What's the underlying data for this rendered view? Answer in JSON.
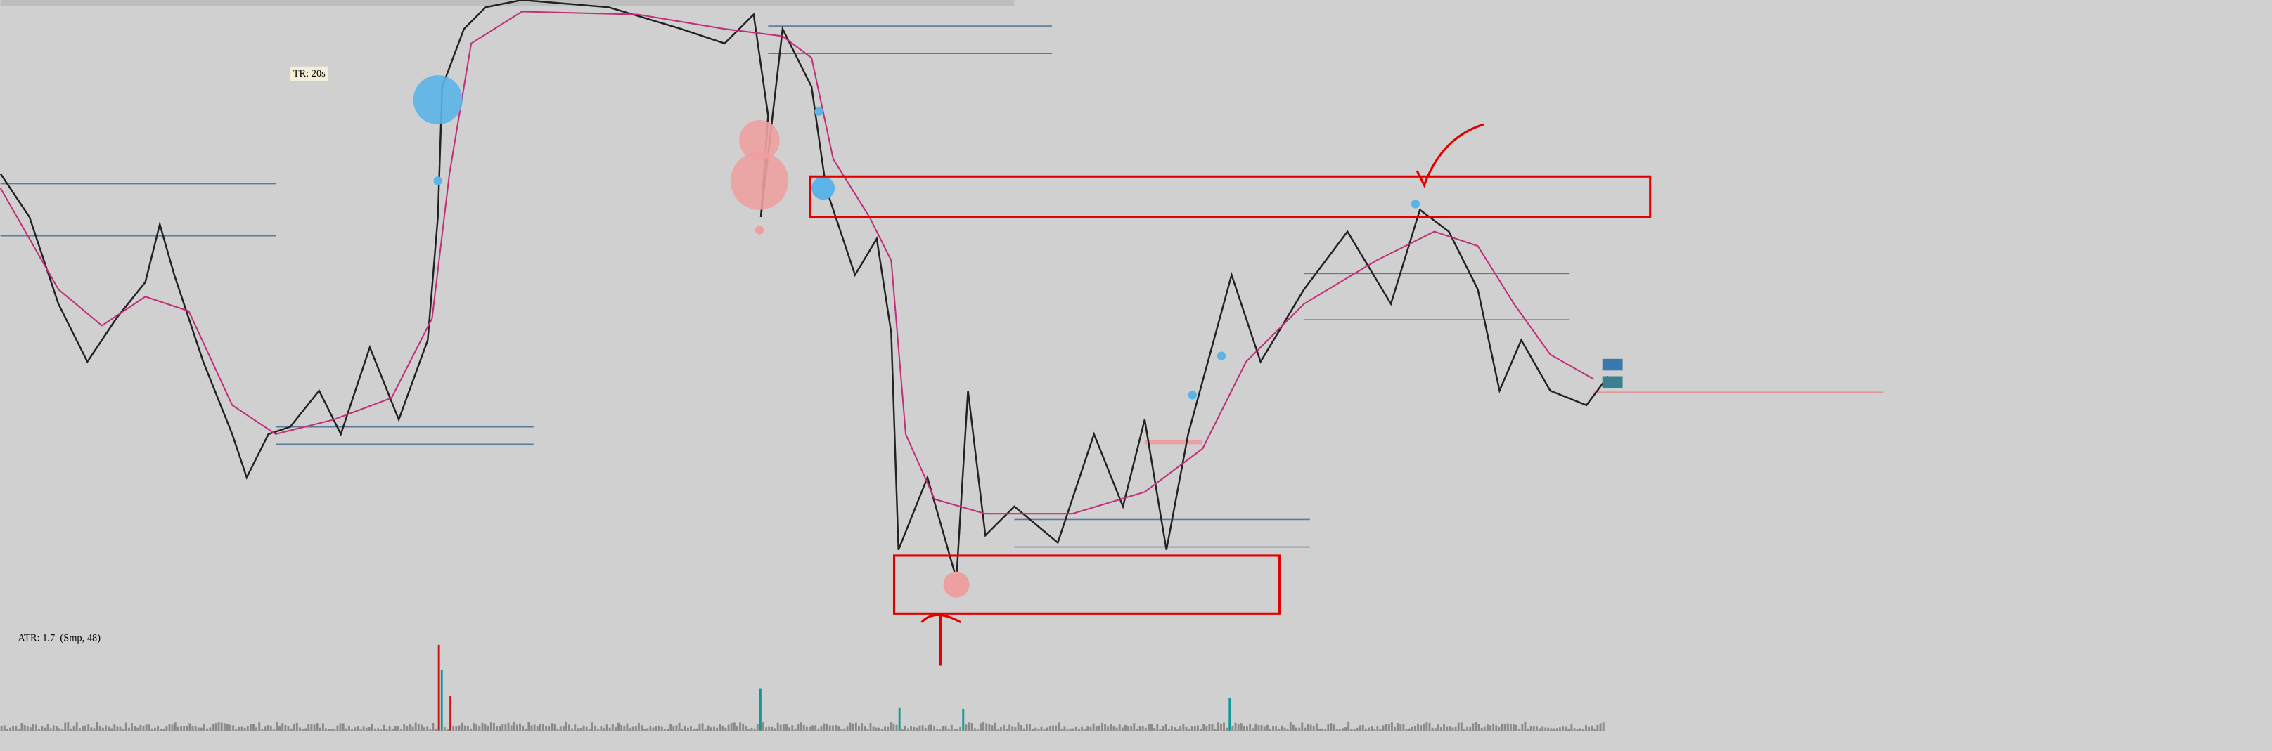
{
  "labels": {
    "timer": "TR: 20s",
    "indicator": "ATR: 1.7  (Smp, 48)"
  }
}
